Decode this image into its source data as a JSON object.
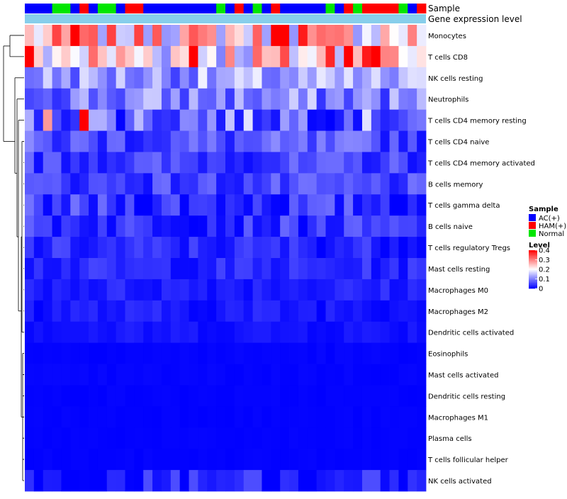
{
  "chart_data": {
    "type": "heatmap",
    "title": "",
    "annotations": [
      {
        "name": "Sample",
        "type": "categorical"
      },
      {
        "name": "Gene expression level",
        "type": "continuous"
      }
    ],
    "sample_groups": [
      "A",
      "A",
      "A",
      "N",
      "N",
      "A",
      "H",
      "A",
      "N",
      "N",
      "A",
      "H",
      "H",
      "A",
      "A",
      "A",
      "A",
      "A",
      "A",
      "A",
      "A",
      "N",
      "A",
      "H",
      "A",
      "N",
      "A",
      "H",
      "A",
      "A",
      "A",
      "A",
      "A",
      "N",
      "A",
      "H",
      "N",
      "H",
      "H",
      "H",
      "H",
      "N",
      "A",
      "H"
    ],
    "group_colors": {
      "A": "#0000ff",
      "H": "#ff0000",
      "N": "#00e600"
    },
    "expression_color": "#87ceeb",
    "rows": [
      "Monocytes",
      "T cells CD8",
      "NK cells resting",
      "Neutrophils",
      "T cells CD4 memory resting",
      "T cells CD4 naive",
      "T cells CD4 memory activated",
      "B cells memory",
      "T cells gamma delta",
      "B cells naive",
      "T cells regulatory  Tregs",
      "Mast cells resting",
      "Macrophages M0",
      "Macrophages M2",
      "Dendritic cells activated",
      "Eosinophils",
      "Mast cells activated",
      "Dendritic cells resting",
      "Macrophages M1",
      "Plasma cells",
      "T cells follicular helper",
      "NK cells activated"
    ],
    "n_columns": 44,
    "value_range": [
      0,
      0.4
    ],
    "row_bias": [
      0.23,
      0.22,
      0.12,
      0.1,
      0.09,
      0.06,
      0.05,
      0.05,
      0.04,
      0.04,
      0.03,
      0.03,
      0.025,
      0.02,
      0.015,
      0.003,
      0.003,
      0.002,
      0.002,
      0.002,
      0.002,
      0.01
    ],
    "row_spread": [
      0.12,
      0.14,
      0.07,
      0.07,
      0.09,
      0.05,
      0.04,
      0.04,
      0.05,
      0.04,
      0.03,
      0.025,
      0.02,
      0.02,
      0.012,
      0.003,
      0.003,
      0.002,
      0.002,
      0.002,
      0.002,
      0.03
    ],
    "hot_cells": [
      [
        0,
        27,
        0.4
      ],
      [
        0,
        28,
        0.4
      ],
      [
        0,
        30,
        0.38
      ],
      [
        0,
        5,
        0.4
      ],
      [
        0,
        14,
        0.33
      ],
      [
        1,
        0,
        0.4
      ],
      [
        1,
        18,
        0.4
      ],
      [
        1,
        33,
        0.37
      ],
      [
        1,
        35,
        0.4
      ],
      [
        1,
        37,
        0.38
      ],
      [
        1,
        38,
        0.4
      ],
      [
        4,
        6,
        0.4
      ],
      [
        4,
        2,
        0.28
      ]
    ],
    "legend": {
      "sample_title": "Sample",
      "entries": [
        {
          "label": "AC(+)",
          "color": "#0000ff"
        },
        {
          "label": "HAM(+)",
          "color": "#ff0000"
        },
        {
          "label": "Normal",
          "color": "#00e600"
        }
      ],
      "level_title": "Level",
      "level_ticks": [
        0.4,
        0.3,
        0.2,
        0.1,
        0
      ],
      "level_tick_labels": [
        "0.4",
        "0.3",
        "0.2",
        "0.1",
        "0"
      ],
      "gradient_colors": [
        "#ff0000",
        "#ffffff",
        "#0000ff"
      ],
      "placement": "right"
    }
  }
}
